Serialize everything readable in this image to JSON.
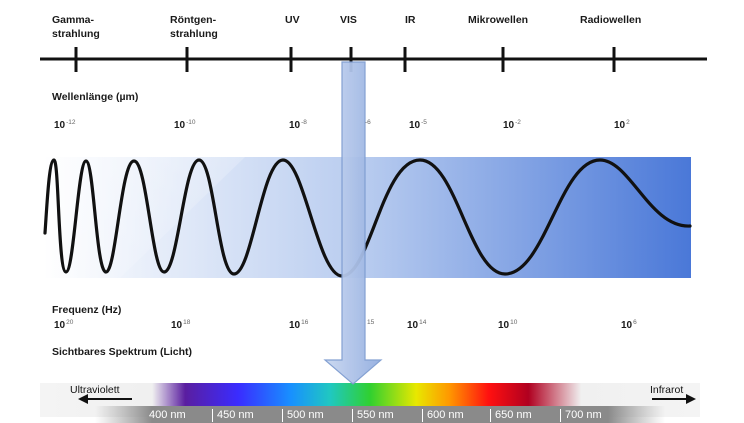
{
  "bands": [
    {
      "label": "Gamma-\nstrahlung"
    },
    {
      "label": "Röntgen-\nstrahlung"
    },
    {
      "label": "UV"
    },
    {
      "label": "VIS"
    },
    {
      "label": "IR"
    },
    {
      "label": "Mikrowellen"
    },
    {
      "label": "Radiowellen"
    }
  ],
  "wavelength": {
    "title": "Wellenlänge (µm)",
    "values": [
      {
        "base": "10",
        "exp": "-12"
      },
      {
        "base": "10",
        "exp": "-10"
      },
      {
        "base": "10",
        "exp": "-8"
      },
      {
        "base": "",
        "exp": "-6"
      },
      {
        "base": "10",
        "exp": "-5"
      },
      {
        "base": "10",
        "exp": "-2"
      },
      {
        "base": "10",
        "exp": "2"
      }
    ]
  },
  "frequency": {
    "title": "Frequenz (Hz)",
    "values": [
      {
        "base": "10",
        "exp": "20"
      },
      {
        "base": "10",
        "exp": "18"
      },
      {
        "base": "10",
        "exp": "16"
      },
      {
        "base": "",
        "exp": "15"
      },
      {
        "base": "10",
        "exp": "14"
      },
      {
        "base": "10",
        "exp": "10"
      },
      {
        "base": "10",
        "exp": "6"
      }
    ]
  },
  "visible_title": "Sichtbares Spektrum (Licht)",
  "visible_spectrum": {
    "left_label": "Ultraviolett",
    "right_label": "Infrarot",
    "nm_labels": [
      "400 nm",
      "450 nm",
      "500 nm",
      "550 nm",
      "600 nm",
      "650 nm",
      "700 nm"
    ]
  },
  "colors": {
    "axis": "#111111",
    "wave": "#111111",
    "band_light": "#ffffff",
    "band_dark": "#4a78d8",
    "arrow_fill": "#a8bfe6",
    "arrow_stroke": "#7e9cd0",
    "spectrum_stops": [
      "#f4f4f4",
      "#5a1ea0",
      "#3a2cff",
      "#1890ff",
      "#20c8c0",
      "#30d030",
      "#e8e800",
      "#ff9800",
      "#ff1010",
      "#b00020",
      "#f4f4f4"
    ]
  }
}
